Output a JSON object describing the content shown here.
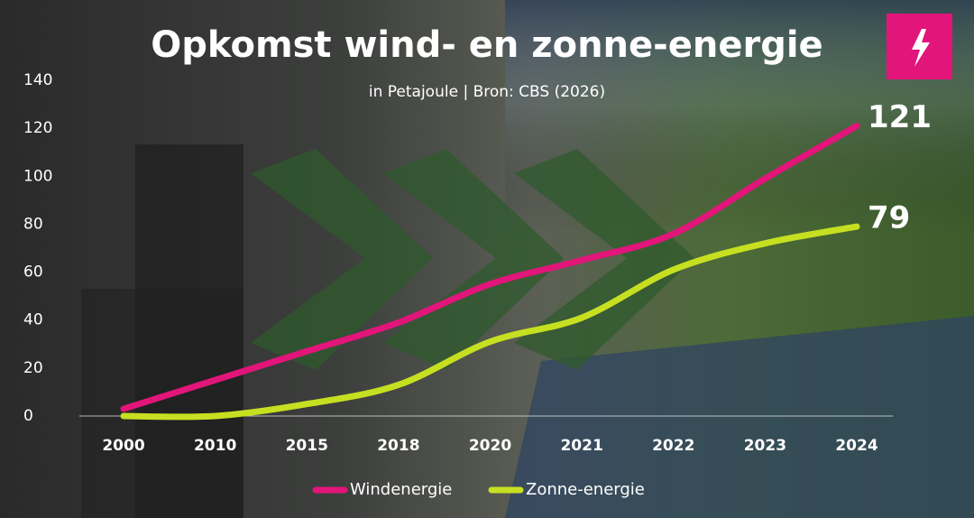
{
  "chart_data": {
    "type": "line",
    "title": "Opkomst wind- en zonne-energie",
    "subtitle": "in Petajoule | Bron: CBS (2026)",
    "categories": [
      "2000",
      "2010",
      "2015",
      "2018",
      "2020",
      "2021",
      "2022",
      "2023",
      "2024"
    ],
    "series": [
      {
        "name": "Windenergie",
        "color": "#e2157a",
        "values": [
          3,
          15,
          27,
          39,
          55,
          65,
          76,
          99,
          121
        ]
      },
      {
        "name": "Zonne-energie",
        "color": "#c6e021",
        "values": [
          0,
          0,
          5,
          13,
          31,
          41,
          61,
          72,
          79
        ]
      }
    ],
    "ylim": [
      0,
      140
    ],
    "yticks": [
      0,
      20,
      40,
      60,
      80,
      100,
      120,
      140
    ],
    "grid": false,
    "legend": "bottom"
  }
}
